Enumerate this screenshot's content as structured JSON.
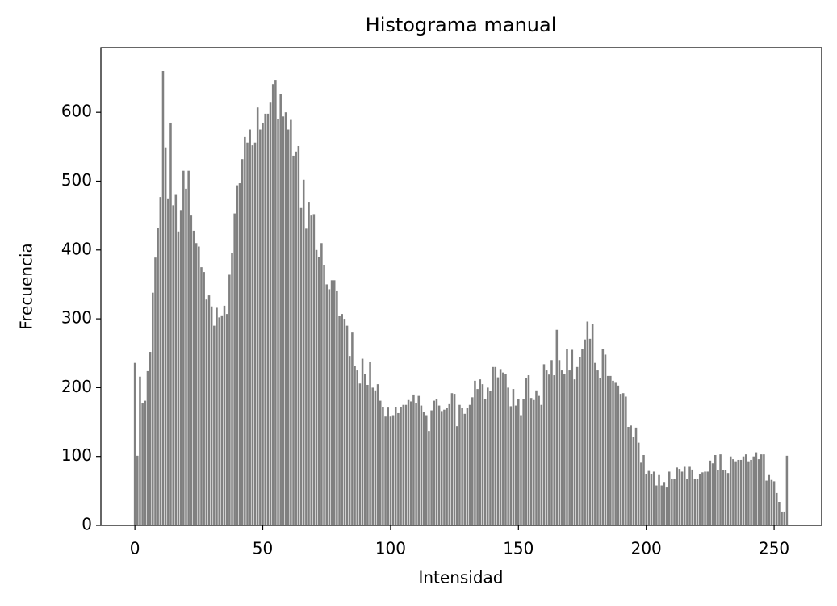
{
  "chart_data": {
    "type": "bar",
    "title": "Histograma manual",
    "x_label": "Intensidad",
    "y_label": "Frecuencia",
    "color": "#808080",
    "x": [
      0,
      1,
      2,
      3,
      4,
      5,
      6,
      7,
      8,
      9,
      10,
      11,
      12,
      13,
      14,
      15,
      16,
      17,
      18,
      19,
      20,
      21,
      22,
      23,
      24,
      25,
      26,
      27,
      28,
      29,
      30,
      31,
      32,
      33,
      34,
      35,
      36,
      37,
      38,
      39,
      40,
      41,
      42,
      43,
      44,
      45,
      46,
      47,
      48,
      49,
      50,
      51,
      52,
      53,
      54,
      55,
      56,
      57,
      58,
      59,
      60,
      61,
      62,
      63,
      64,
      65,
      66,
      67,
      68,
      69,
      70,
      71,
      72,
      73,
      74,
      75,
      76,
      77,
      78,
      79,
      80,
      81,
      82,
      83,
      84,
      85,
      86,
      87,
      88,
      89,
      90,
      91,
      92,
      93,
      94,
      95,
      96,
      97,
      98,
      99,
      100,
      101,
      102,
      103,
      104,
      105,
      106,
      107,
      108,
      109,
      110,
      111,
      112,
      113,
      114,
      115,
      116,
      117,
      118,
      119,
      120,
      121,
      122,
      123,
      124,
      125,
      126,
      127,
      128,
      129,
      130,
      131,
      132,
      133,
      134,
      135,
      136,
      137,
      138,
      139,
      140,
      141,
      142,
      143,
      144,
      145,
      146,
      147,
      148,
      149,
      150,
      151,
      152,
      153,
      154,
      155,
      156,
      157,
      158,
      159,
      160,
      161,
      162,
      163,
      164,
      165,
      166,
      167,
      168,
      169,
      170,
      171,
      172,
      173,
      174,
      175,
      176,
      177,
      178,
      179,
      180,
      181,
      182,
      183,
      184,
      185,
      186,
      187,
      188,
      189,
      190,
      191,
      192,
      193,
      194,
      195,
      196,
      197,
      198,
      199,
      200,
      201,
      202,
      203,
      204,
      205,
      206,
      207,
      208,
      209,
      210,
      211,
      212,
      213,
      214,
      215,
      216,
      217,
      218,
      219,
      220,
      221,
      222,
      223,
      224,
      225,
      226,
      227,
      228,
      229,
      230,
      231,
      232,
      233,
      234,
      235,
      236,
      237,
      238,
      239,
      240,
      241,
      242,
      243,
      244,
      245,
      246,
      247,
      248,
      249,
      250,
      251,
      252,
      253,
      254,
      255
    ],
    "values": [
      236,
      101,
      216,
      177,
      181,
      224,
      252,
      338,
      389,
      432,
      477,
      660,
      549,
      475,
      585,
      465,
      480,
      427,
      458,
      515,
      489,
      515,
      450,
      428,
      410,
      405,
      375,
      368,
      328,
      334,
      318,
      290,
      316,
      302,
      305,
      319,
      307,
      364,
      396,
      453,
      494,
      497,
      532,
      564,
      556,
      575,
      552,
      556,
      607,
      575,
      585,
      598,
      598,
      614,
      641,
      647,
      590,
      626,
      594,
      600,
      575,
      589,
      537,
      543,
      551,
      461,
      502,
      431,
      470,
      450,
      452,
      400,
      390,
      410,
      378,
      350,
      343,
      356,
      356,
      340,
      304,
      307,
      300,
      290,
      246,
      280,
      232,
      225,
      206,
      242,
      220,
      204,
      238,
      200,
      196,
      205,
      181,
      172,
      158,
      171,
      158,
      160,
      172,
      163,
      172,
      175,
      175,
      182,
      180,
      190,
      177,
      188,
      174,
      165,
      160,
      137,
      167,
      181,
      183,
      174,
      166,
      168,
      170,
      176,
      192,
      191,
      144,
      175,
      170,
      162,
      170,
      175,
      186,
      210,
      198,
      212,
      205,
      184,
      200,
      195,
      230,
      230,
      215,
      227,
      222,
      220,
      200,
      173,
      198,
      174,
      184,
      160,
      184,
      214,
      218,
      185,
      182,
      196,
      188,
      175,
      234,
      225,
      219,
      240,
      218,
      284,
      240,
      225,
      220,
      256,
      225,
      255,
      212,
      230,
      244,
      256,
      270,
      296,
      271,
      293,
      236,
      225,
      214,
      256,
      248,
      217,
      217,
      210,
      207,
      203,
      191,
      192,
      187,
      143,
      145,
      128,
      142,
      120,
      91,
      102,
      74,
      79,
      75,
      78,
      58,
      73,
      58,
      63,
      55,
      78,
      68,
      68,
      84,
      82,
      78,
      85,
      68,
      85,
      81,
      68,
      68,
      74,
      77,
      78,
      78,
      94,
      90,
      102,
      80,
      103,
      80,
      80,
      76,
      100,
      96,
      93,
      95,
      95,
      100,
      103,
      93,
      95,
      100,
      106,
      96,
      103,
      103,
      65,
      73,
      66,
      64,
      47,
      34,
      20,
      20,
      101
    ],
    "xlim": [
      -13.3,
      268.6
    ],
    "ylim": [
      0,
      694
    ],
    "xticks": [
      0,
      50,
      100,
      150,
      200,
      250
    ],
    "yticks": [
      0,
      100,
      200,
      300,
      400,
      500,
      600
    ]
  }
}
